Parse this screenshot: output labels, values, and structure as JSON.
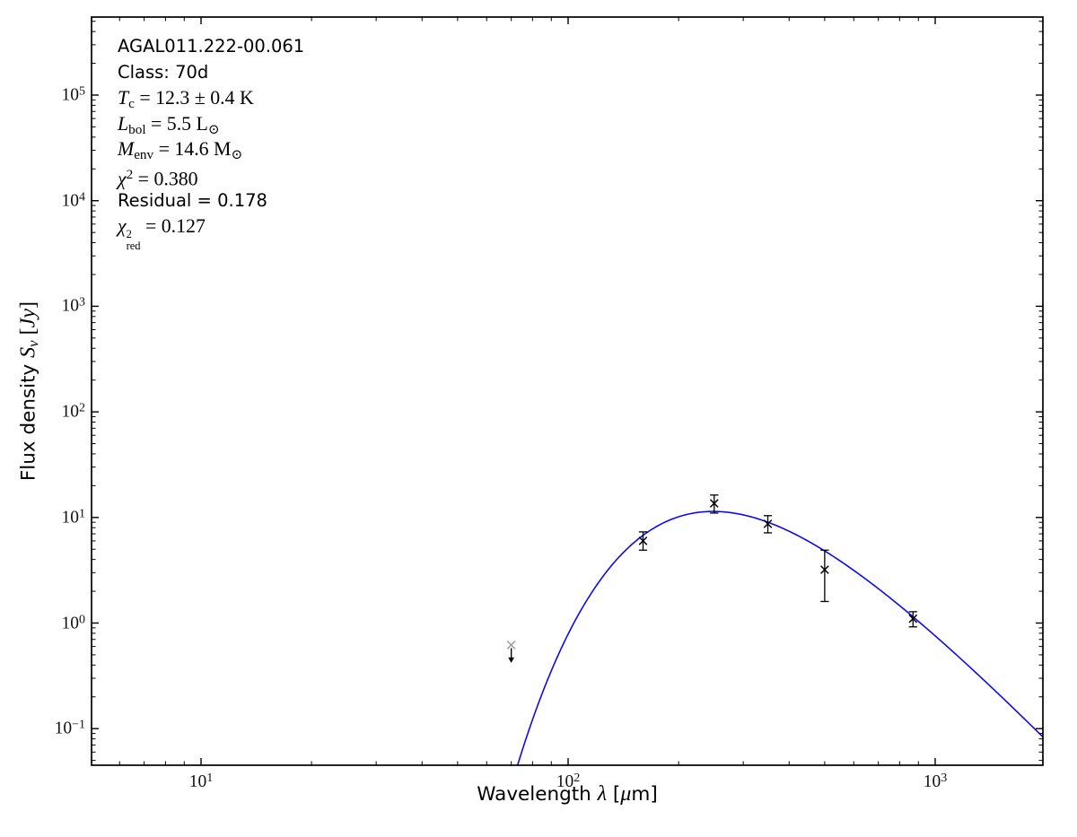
{
  "figure": {
    "background": "#ffffff",
    "frame_color": "#000000",
    "tick_label_base": "10"
  },
  "annotation": {
    "lines": [
      {
        "name": "source-name",
        "segments": [
          {
            "t": "AGAL011.222-00.061",
            "s": "sans"
          }
        ]
      },
      {
        "name": "class",
        "segments": [
          {
            "t": "Class: 70d",
            "s": "sans"
          }
        ]
      },
      {
        "name": "dust-temperature",
        "segments": [
          {
            "t": "T",
            "s": "var"
          },
          {
            "t": "c",
            "s": "sub"
          },
          {
            "t": " = 12.3 ± 0.4 K",
            "s": "rm"
          }
        ]
      },
      {
        "name": "bolometric-luminosity",
        "segments": [
          {
            "t": "L",
            "s": "var"
          },
          {
            "t": "bol",
            "s": "sub"
          },
          {
            "t": " = 5.5 L",
            "s": "rm"
          },
          {
            "t": "⊙",
            "s": "sub"
          }
        ]
      },
      {
        "name": "envelope-mass",
        "segments": [
          {
            "t": "M",
            "s": "var"
          },
          {
            "t": "env",
            "s": "sub"
          },
          {
            "t": " = 14.6 M",
            "s": "rm"
          },
          {
            "t": "⊙",
            "s": "sub"
          }
        ]
      },
      {
        "name": "chi-squared",
        "segments": [
          {
            "t": "χ",
            "s": "var"
          },
          {
            "t": "2",
            "s": "sup"
          },
          {
            "t": " = 0.380",
            "s": "rm"
          }
        ]
      },
      {
        "name": "residual",
        "segments": [
          {
            "t": "Residual = 0.178",
            "s": "sans"
          }
        ]
      },
      {
        "name": "chi-squared-reduced",
        "segments": [
          {
            "t": "χ",
            "s": "var"
          },
          {
            "sup": "2",
            "sub": "red",
            "s": "supsub"
          },
          {
            "t": " = 0.127",
            "s": "rm"
          }
        ]
      }
    ]
  },
  "chart_data": {
    "type": "scatter",
    "title": "",
    "x_scale": "log",
    "y_scale": "log",
    "grid": false,
    "xlabel_segments": [
      {
        "t": "Wavelength ",
        "s": "sans"
      },
      {
        "t": "λ",
        "s": "var"
      },
      {
        "t": " [",
        "s": "sans"
      },
      {
        "t": "μ",
        "s": "var"
      },
      {
        "t": "m]",
        "s": "sans"
      }
    ],
    "ylabel_segments": [
      {
        "t": "Flux density ",
        "s": "sans"
      },
      {
        "t": "S",
        "s": "var"
      },
      {
        "t": "ν",
        "s": "subvar"
      },
      {
        "t": " [",
        "s": "rm"
      },
      {
        "t": "Jy",
        "s": "var"
      },
      {
        "t": "]",
        "s": "rm"
      }
    ],
    "xlim_um": [
      5.0,
      1965
    ],
    "ylim_jy": [
      0.045,
      548000
    ],
    "x_major_ticks": [
      {
        "value": 10,
        "exp": "1"
      },
      {
        "value": 100,
        "exp": "2"
      },
      {
        "value": 1000,
        "exp": "3"
      }
    ],
    "y_major_ticks": [
      {
        "value": 100000,
        "exp": "5"
      },
      {
        "value": 10000,
        "exp": "4"
      },
      {
        "value": 1000,
        "exp": "3"
      },
      {
        "value": 100,
        "exp": "2"
      },
      {
        "value": 10,
        "exp": "1"
      },
      {
        "value": 1,
        "exp": "0"
      },
      {
        "value": 0.1,
        "exp": "−1"
      }
    ],
    "points": [
      {
        "wavelength_um": 160,
        "flux_jy": 6.0,
        "err_hi_jy": 7.3,
        "err_lo_jy": 4.9
      },
      {
        "wavelength_um": 250,
        "flux_jy": 13.6,
        "err_hi_jy": 16.3,
        "err_lo_jy": 11.0
      },
      {
        "wavelength_um": 350,
        "flux_jy": 8.7,
        "err_hi_jy": 10.4,
        "err_lo_jy": 7.15
      },
      {
        "wavelength_um": 500,
        "flux_jy": 3.2,
        "err_hi_jy": 4.9,
        "err_lo_jy": 1.6
      },
      {
        "wavelength_um": 870,
        "flux_jy": 1.1,
        "err_hi_jy": 1.28,
        "err_lo_jy": 0.92
      }
    ],
    "upper_limits": [
      {
        "wavelength_um": 70,
        "flux_jy": 0.62,
        "arrow_to_jy": 0.42
      }
    ],
    "fit_curve": {
      "model": "greybody",
      "T_K": 12.3,
      "beta": 1.75,
      "peak_wavelength_um": 249,
      "peak_flux_jy": 11.4,
      "range_um": [
        55,
        2000
      ],
      "color": "#0b0bf0"
    },
    "marker": {
      "shape": "x",
      "color": "#000000",
      "upper_limit_color": "#9a9a9a"
    }
  }
}
